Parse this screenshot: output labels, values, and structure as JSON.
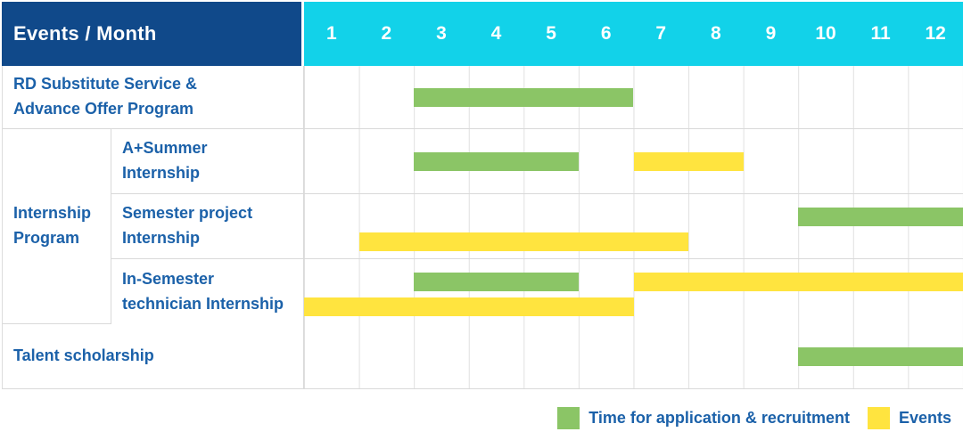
{
  "colors": {
    "navy": "#10498a",
    "cyan": "#12d2e9",
    "text_blue": "#1b61a9",
    "recruitment_green": "#8bc566",
    "events_yellow": "#ffe43f"
  },
  "header": {
    "title": "Events / Month"
  },
  "chart_data": {
    "type": "gantt",
    "title": "Events / Month",
    "months": [
      "1",
      "2",
      "3",
      "4",
      "5",
      "6",
      "7",
      "8",
      "9",
      "10",
      "11",
      "12"
    ],
    "x_range": [
      1,
      12
    ],
    "grid": true,
    "legend_position": "bottom-right",
    "legend": [
      {
        "key": "recruitment",
        "label": "Time for application & recruitment",
        "color": "#8bc566"
      },
      {
        "key": "events",
        "label": "Events",
        "color": "#ffe43f"
      }
    ],
    "rows": [
      {
        "group": "",
        "label": "RD Substitute Service &\nAdvance Offer Program",
        "tracks": [
          [
            {
              "type": "recruitment",
              "start_month": 3,
              "end_month": 6
            }
          ]
        ]
      },
      {
        "group": "Internship Program",
        "label": "A+Summer\nInternship",
        "tracks": [
          [
            {
              "type": "recruitment",
              "start_month": 3,
              "end_month": 5
            },
            {
              "type": "events",
              "start_month": 7,
              "end_month": 8
            }
          ]
        ]
      },
      {
        "group": "Internship Program",
        "label": "Semester project\nInternship",
        "tracks": [
          [
            {
              "type": "recruitment",
              "start_month": 10,
              "end_month": 12
            }
          ],
          [
            {
              "type": "events",
              "start_month": 2,
              "end_month": 7
            }
          ]
        ]
      },
      {
        "group": "Internship Program",
        "label": "In-Semester\ntechnician Internship",
        "tracks": [
          [
            {
              "type": "recruitment",
              "start_month": 3,
              "end_month": 5
            },
            {
              "type": "events",
              "start_month": 7,
              "end_month": 12
            }
          ],
          [
            {
              "type": "events",
              "start_month": 1,
              "end_month": 6
            }
          ]
        ]
      },
      {
        "group": "",
        "label": "Talent scholarship",
        "tracks": [
          [
            {
              "type": "recruitment",
              "start_month": 10,
              "end_month": 12
            }
          ]
        ]
      }
    ]
  }
}
